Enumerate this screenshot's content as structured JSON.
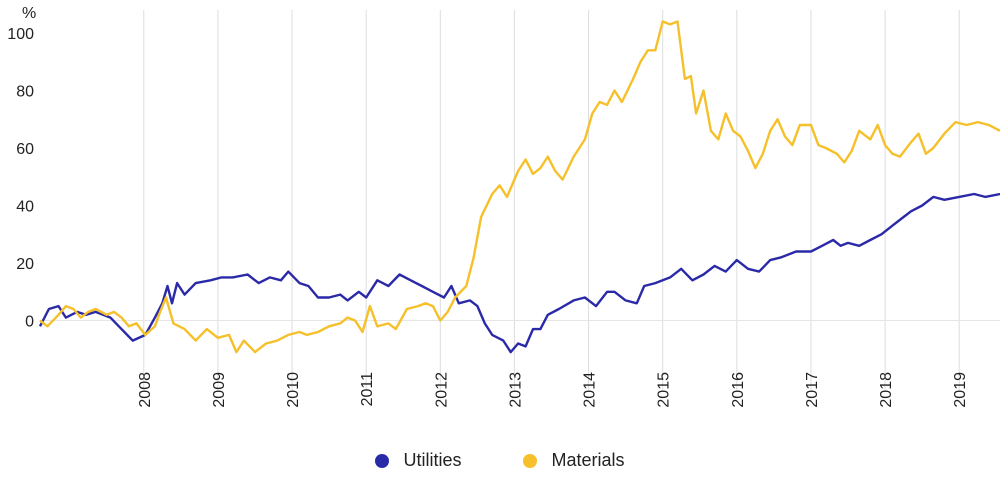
{
  "chart_data": {
    "type": "line",
    "title": "",
    "xlabel": "",
    "ylabel": "%",
    "ylim": [
      -12,
      108
    ],
    "xlim": [
      2007.0,
      2019.95
    ],
    "yticks": [
      0,
      20,
      40,
      60,
      80,
      100
    ],
    "xticks": [
      "2008",
      "2009",
      "2010",
      "2011",
      "2012",
      "2013",
      "2014",
      "2015",
      "2016",
      "2017",
      "2018",
      "2019"
    ],
    "grid": "vertical",
    "legend_position": "bottom-center",
    "colors": {
      "Utilities": "#2a2aa8",
      "Materials": "#f5c02a",
      "grid": "#dddddd",
      "axis": "#444444"
    },
    "series": [
      {
        "name": "Utilities",
        "points": [
          [
            2007.0,
            -2
          ],
          [
            2007.12,
            4
          ],
          [
            2007.25,
            5
          ],
          [
            2007.35,
            1
          ],
          [
            2007.5,
            3
          ],
          [
            2007.62,
            2
          ],
          [
            2007.75,
            3
          ],
          [
            2007.95,
            1
          ],
          [
            2008.1,
            -3
          ],
          [
            2008.25,
            -7
          ],
          [
            2008.42,
            -5
          ],
          [
            2008.55,
            1
          ],
          [
            2008.65,
            6
          ],
          [
            2008.72,
            12
          ],
          [
            2008.78,
            6
          ],
          [
            2008.85,
            13
          ],
          [
            2008.95,
            9
          ],
          [
            2009.1,
            13
          ],
          [
            2009.3,
            14
          ],
          [
            2009.45,
            15
          ],
          [
            2009.6,
            15
          ],
          [
            2009.8,
            16
          ],
          [
            2009.95,
            13
          ],
          [
            2010.1,
            15
          ],
          [
            2010.25,
            14
          ],
          [
            2010.35,
            17
          ],
          [
            2010.5,
            13
          ],
          [
            2010.62,
            12
          ],
          [
            2010.75,
            8
          ],
          [
            2010.9,
            8
          ],
          [
            2011.05,
            9
          ],
          [
            2011.15,
            7
          ],
          [
            2011.3,
            10
          ],
          [
            2011.4,
            8
          ],
          [
            2011.55,
            14
          ],
          [
            2011.7,
            12
          ],
          [
            2011.85,
            16
          ],
          [
            2012.0,
            14
          ],
          [
            2012.15,
            12
          ],
          [
            2012.3,
            10
          ],
          [
            2012.45,
            8
          ],
          [
            2012.55,
            12
          ],
          [
            2012.65,
            6
          ],
          [
            2012.8,
            7
          ],
          [
            2012.9,
            5
          ],
          [
            2013.0,
            -1
          ],
          [
            2013.1,
            -5
          ],
          [
            2013.25,
            -7
          ],
          [
            2013.35,
            -11
          ],
          [
            2013.45,
            -8
          ],
          [
            2013.55,
            -9
          ],
          [
            2013.65,
            -3
          ],
          [
            2013.75,
            -3
          ],
          [
            2013.85,
            2
          ],
          [
            2014.0,
            4
          ],
          [
            2014.2,
            7
          ],
          [
            2014.35,
            8
          ],
          [
            2014.5,
            5
          ],
          [
            2014.65,
            10
          ],
          [
            2014.75,
            10
          ],
          [
            2014.9,
            7
          ],
          [
            2015.05,
            6
          ],
          [
            2015.15,
            12
          ],
          [
            2015.3,
            13
          ],
          [
            2015.5,
            15
          ],
          [
            2015.65,
            18
          ],
          [
            2015.8,
            14
          ],
          [
            2015.95,
            16
          ],
          [
            2016.1,
            19
          ],
          [
            2016.25,
            17
          ],
          [
            2016.4,
            21
          ],
          [
            2016.55,
            18
          ],
          [
            2016.7,
            17
          ],
          [
            2016.85,
            21
          ],
          [
            2017.0,
            22
          ],
          [
            2017.2,
            24
          ],
          [
            2017.4,
            24
          ],
          [
            2017.55,
            26
          ],
          [
            2017.7,
            28
          ],
          [
            2017.8,
            26
          ],
          [
            2017.9,
            27
          ],
          [
            2018.05,
            26
          ],
          [
            2018.2,
            28
          ],
          [
            2018.35,
            30
          ],
          [
            2018.5,
            33
          ],
          [
            2018.65,
            36
          ],
          [
            2018.75,
            38
          ],
          [
            2018.9,
            40
          ],
          [
            2019.05,
            43
          ],
          [
            2019.2,
            42
          ],
          [
            2019.4,
            43
          ],
          [
            2019.6,
            44
          ],
          [
            2019.75,
            43
          ],
          [
            2019.95,
            44
          ]
        ]
      },
      {
        "name": "Materials",
        "points": [
          [
            2007.0,
            0
          ],
          [
            2007.1,
            -2
          ],
          [
            2007.25,
            2
          ],
          [
            2007.35,
            5
          ],
          [
            2007.45,
            4
          ],
          [
            2007.55,
            1
          ],
          [
            2007.65,
            3
          ],
          [
            2007.75,
            4
          ],
          [
            2007.9,
            2
          ],
          [
            2008.0,
            3
          ],
          [
            2008.1,
            1
          ],
          [
            2008.2,
            -2
          ],
          [
            2008.3,
            -1
          ],
          [
            2008.42,
            -5
          ],
          [
            2008.55,
            -2
          ],
          [
            2008.62,
            3
          ],
          [
            2008.7,
            8
          ],
          [
            2008.8,
            -1
          ],
          [
            2008.95,
            -3
          ],
          [
            2009.1,
            -7
          ],
          [
            2009.25,
            -3
          ],
          [
            2009.4,
            -6
          ],
          [
            2009.55,
            -5
          ],
          [
            2009.65,
            -11
          ],
          [
            2009.75,
            -7
          ],
          [
            2009.9,
            -11
          ],
          [
            2010.05,
            -8
          ],
          [
            2010.2,
            -7
          ],
          [
            2010.35,
            -5
          ],
          [
            2010.5,
            -4
          ],
          [
            2010.6,
            -5
          ],
          [
            2010.75,
            -4
          ],
          [
            2010.9,
            -2
          ],
          [
            2011.05,
            -1
          ],
          [
            2011.15,
            1
          ],
          [
            2011.25,
            0
          ],
          [
            2011.35,
            -4
          ],
          [
            2011.45,
            5
          ],
          [
            2011.55,
            -2
          ],
          [
            2011.7,
            -1
          ],
          [
            2011.8,
            -3
          ],
          [
            2011.95,
            4
          ],
          [
            2012.1,
            5
          ],
          [
            2012.2,
            6
          ],
          [
            2012.3,
            5
          ],
          [
            2012.4,
            0
          ],
          [
            2012.5,
            3
          ],
          [
            2012.6,
            8
          ],
          [
            2012.75,
            12
          ],
          [
            2012.85,
            22
          ],
          [
            2012.95,
            36
          ],
          [
            2013.1,
            44
          ],
          [
            2013.2,
            47
          ],
          [
            2013.3,
            43
          ],
          [
            2013.45,
            52
          ],
          [
            2013.55,
            56
          ],
          [
            2013.65,
            51
          ],
          [
            2013.75,
            53
          ],
          [
            2013.85,
            57
          ],
          [
            2013.95,
            52
          ],
          [
            2014.05,
            49
          ],
          [
            2014.2,
            57
          ],
          [
            2014.35,
            63
          ],
          [
            2014.45,
            72
          ],
          [
            2014.55,
            76
          ],
          [
            2014.65,
            75
          ],
          [
            2014.75,
            80
          ],
          [
            2014.85,
            76
          ],
          [
            2015.0,
            84
          ],
          [
            2015.1,
            90
          ],
          [
            2015.2,
            94
          ],
          [
            2015.3,
            94
          ],
          [
            2015.4,
            104
          ],
          [
            2015.5,
            103
          ],
          [
            2015.6,
            104
          ],
          [
            2015.7,
            84
          ],
          [
            2015.78,
            85
          ],
          [
            2015.85,
            72
          ],
          [
            2015.95,
            80
          ],
          [
            2016.05,
            66
          ],
          [
            2016.15,
            63
          ],
          [
            2016.25,
            72
          ],
          [
            2016.35,
            66
          ],
          [
            2016.45,
            64
          ],
          [
            2016.55,
            59
          ],
          [
            2016.65,
            53
          ],
          [
            2016.75,
            58
          ],
          [
            2016.85,
            66
          ],
          [
            2016.95,
            70
          ],
          [
            2017.05,
            64
          ],
          [
            2017.15,
            61
          ],
          [
            2017.25,
            68
          ],
          [
            2017.4,
            68
          ],
          [
            2017.5,
            61
          ],
          [
            2017.6,
            60
          ],
          [
            2017.75,
            58
          ],
          [
            2017.85,
            55
          ],
          [
            2017.95,
            59
          ],
          [
            2018.05,
            66
          ],
          [
            2018.2,
            63
          ],
          [
            2018.3,
            68
          ],
          [
            2018.4,
            61
          ],
          [
            2018.5,
            58
          ],
          [
            2018.6,
            57
          ],
          [
            2018.75,
            62
          ],
          [
            2018.85,
            65
          ],
          [
            2018.95,
            58
          ],
          [
            2019.05,
            60
          ],
          [
            2019.2,
            65
          ],
          [
            2019.35,
            69
          ],
          [
            2019.5,
            68
          ],
          [
            2019.65,
            69
          ],
          [
            2019.8,
            68
          ],
          [
            2019.95,
            66
          ]
        ]
      }
    ]
  }
}
